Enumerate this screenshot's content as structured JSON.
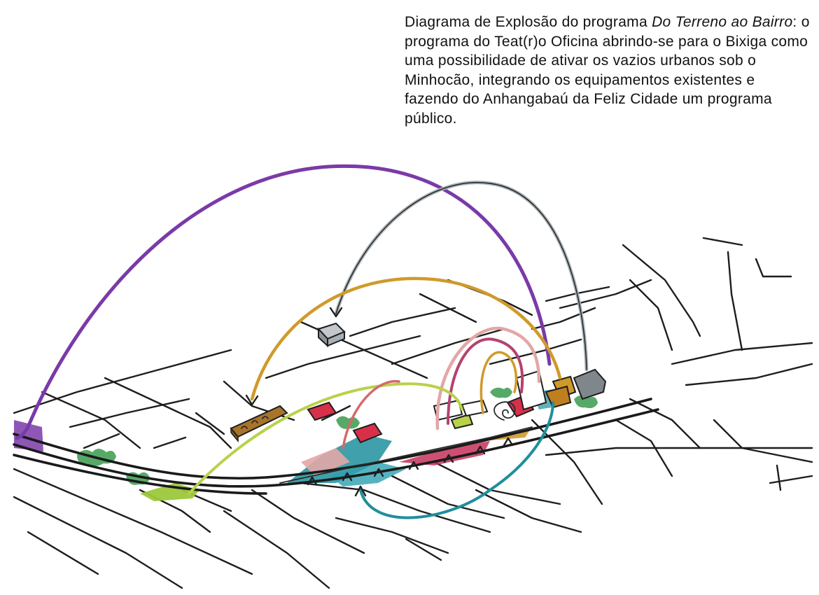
{
  "caption": {
    "part1": "Diagrama de Explosão do programa ",
    "title_italic": "Do Terreno ao Bairro",
    "part2": ": o programa do Teat(r)o Oficina abrindo-se para o Bixiga como uma possibilidade de ativar os vazios urbanos sob o Minhocão, integrando os equipamentos existentes e fazendo do Anhangabaú da Feliz Cidade um programa público."
  },
  "colors": {
    "ink": "#1e1e1e",
    "purple": "#7a3aa8",
    "grey_arc": "#a9b1b6",
    "ochre": "#d09a2a",
    "pink": "#e3a6a6",
    "magenta": "#b4426e",
    "lime": "#b8d24a",
    "teal": "#1f8f9c",
    "red_block": "#d8304a",
    "green_veg": "#3a9a4e",
    "brown_block": "#a8742a"
  }
}
